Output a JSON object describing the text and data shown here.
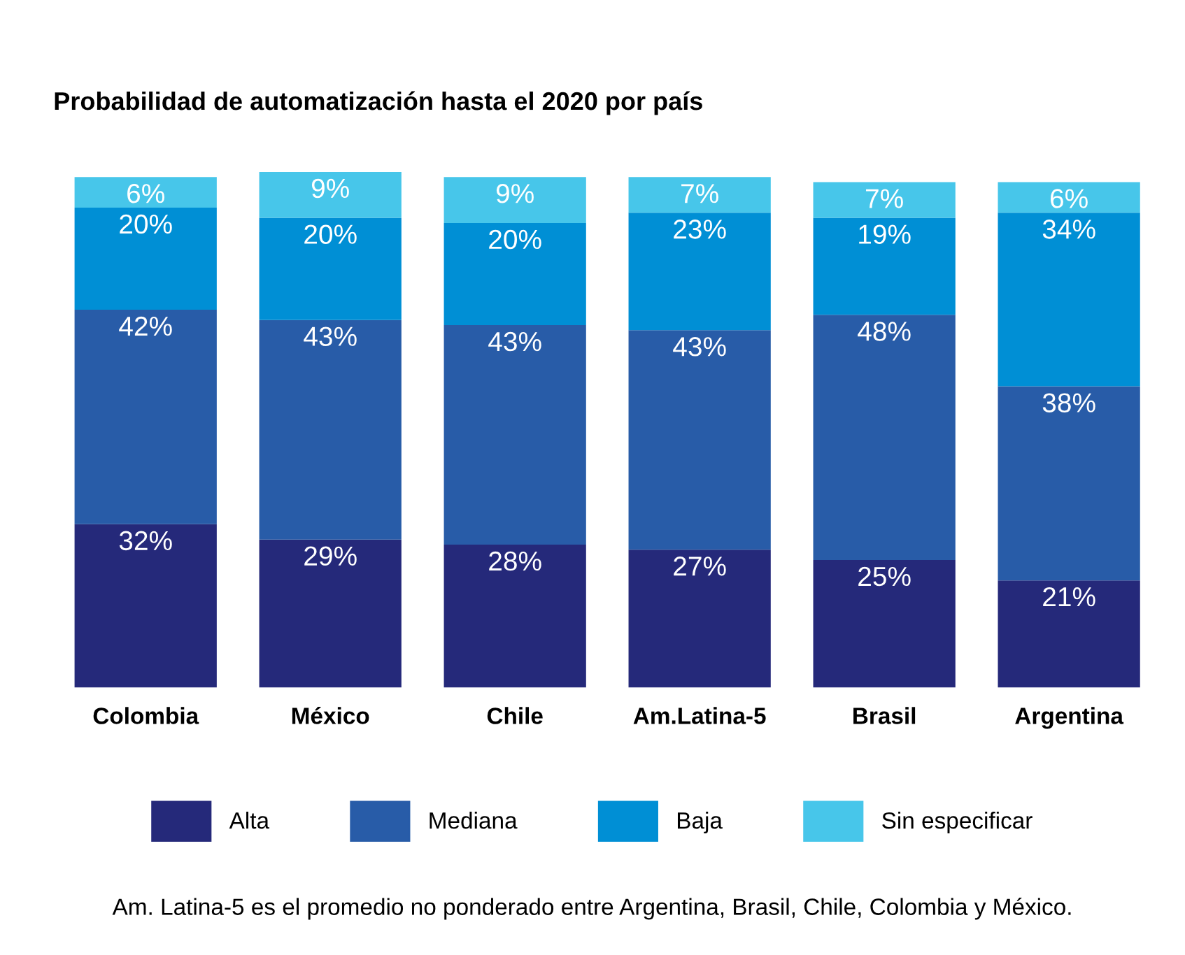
{
  "chart_data": {
    "type": "bar",
    "stacked": true,
    "title": "Probabilidad de automatización hasta el 2020 por país",
    "categories": [
      "Colombia",
      "México",
      "Chile",
      "Am.Latina-5",
      "Brasil",
      "Argentina"
    ],
    "series": [
      {
        "name": "Alta",
        "color": "#25297a",
        "values": [
          32,
          29,
          28,
          27,
          25,
          21
        ],
        "value_labels": [
          "32%",
          "29%",
          "28%",
          "27%",
          "25%",
          "21%"
        ]
      },
      {
        "name": "Mediana",
        "color": "#285ca8",
        "values": [
          42,
          43,
          43,
          43,
          48,
          38
        ],
        "value_labels": [
          "42%",
          "43%",
          "43%",
          "43%",
          "48%",
          "38%"
        ]
      },
      {
        "name": "Baja",
        "color": "#008fd5",
        "values": [
          20,
          20,
          20,
          23,
          19,
          34
        ],
        "value_labels": [
          "20%",
          "20%",
          "20%",
          "23%",
          "19%",
          "34%"
        ]
      },
      {
        "name": "Sin especificar",
        "color": "#47c6ea",
        "values": [
          6,
          9,
          9,
          7,
          7,
          6
        ],
        "value_labels": [
          "6%",
          "9%",
          "9%",
          "7%",
          "7%",
          "6%"
        ]
      }
    ],
    "legend": "bottom",
    "annotations": [
      "Am. Latina-5 es el promedio no ponderado entre Argentina, Brasil, Chile, Colombia y México."
    ]
  }
}
